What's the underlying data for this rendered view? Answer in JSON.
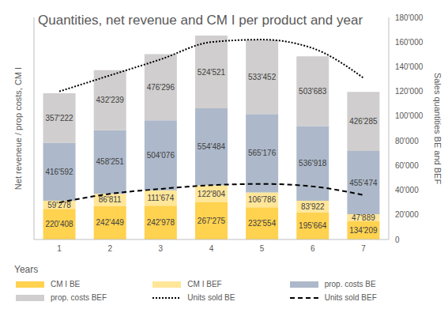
{
  "chart_data": {
    "type": "bar",
    "title": "Quantities, net revenue and CM I per product and year",
    "x_label": "Years",
    "y_label": "Net reveneue / prop costs, CM I",
    "y2_label": "Sales quantities BE and BEF",
    "categories": [
      "1",
      "2",
      "3",
      "4",
      "5",
      "6",
      "7"
    ],
    "stacked": true,
    "data_labels": true,
    "legend": "bottom",
    "grid": false,
    "ylim": [
      0,
      1600000
    ],
    "y2lim": [
      0,
      180000
    ],
    "y2ticks": [
      0,
      {
        "value": 20000,
        "label": "20'000"
      },
      {
        "value": 40000,
        "label": "40'000"
      },
      {
        "value": 60000,
        "label": "60'000"
      },
      {
        "value": 80000,
        "label": "80'000"
      },
      {
        "value": 100000,
        "label": "100'000"
      },
      {
        "value": 120000,
        "label": "120'000"
      },
      {
        "value": 140000,
        "label": "140'000"
      },
      {
        "value": 160000,
        "label": "160'000"
      },
      {
        "value": 180000,
        "label": "180'000"
      }
    ],
    "series": [
      {
        "name": "CM I BE",
        "type": "bar",
        "color": "#FFD24F",
        "values": [
          220408,
          242449,
          242978,
          267275,
          232554,
          195664,
          134209
        ],
        "value_labels": [
          "220'408",
          "242'449",
          "242'978",
          "267'275",
          "232'554",
          "195'664",
          "134'209"
        ]
      },
      {
        "name": "CM I BEF",
        "type": "bar",
        "color": "#FFE699",
        "values": [
          59278,
          86811,
          111674,
          122804,
          106786,
          83922,
          47889
        ],
        "value_labels": [
          "59'278",
          "86'811",
          "111'674",
          "122'804",
          "106'786",
          "83'922",
          "47'889"
        ]
      },
      {
        "name": "prop. costs BE",
        "type": "bar",
        "color": "#ADB9CA",
        "values": [
          416592,
          458251,
          504076,
          554484,
          565176,
          536918,
          455474
        ],
        "value_labels": [
          "416'592",
          "458'251",
          "504'076",
          "554'484",
          "565'176",
          "536'918",
          "455'474"
        ]
      },
      {
        "name": "prop. costs BEF",
        "type": "bar",
        "color": "#D0CECE",
        "values": [
          357222,
          432239,
          476296,
          524521,
          533452,
          503683,
          426285
        ],
        "value_labels": [
          "357'222",
          "432'239",
          "476'296",
          "524'521",
          "533'452",
          "503'683",
          "426'285"
        ]
      },
      {
        "name": "Units sold BE",
        "type": "line",
        "axis": "y2",
        "color": "#000000",
        "line_style": "dotted",
        "marker": "none",
        "values": [
          120000,
          133000,
          146000,
          160000,
          162000,
          155000,
          131000
        ]
      },
      {
        "name": "Units sold BEF",
        "type": "line",
        "axis": "y2",
        "color": "#000000",
        "line_style": "dashed",
        "marker": "none",
        "values": [
          30000,
          37000,
          41000,
          44000,
          45000,
          43000,
          36000
        ]
      }
    ]
  }
}
